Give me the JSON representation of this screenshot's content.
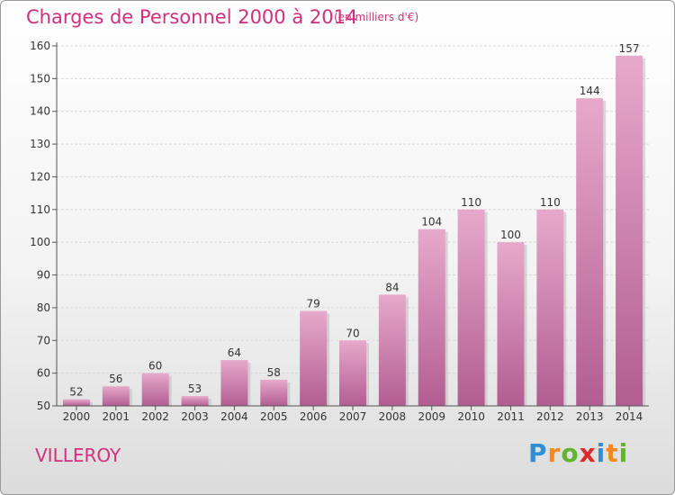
{
  "chart_data": {
    "type": "bar",
    "title": "Charges de Personnel 2000 à 2014",
    "subtitle": "(en milliers d'€)",
    "categories": [
      "2000",
      "2001",
      "2002",
      "2003",
      "2004",
      "2005",
      "2006",
      "2007",
      "2008",
      "2009",
      "2010",
      "2011",
      "2012",
      "2013",
      "2014"
    ],
    "values": [
      52,
      56,
      60,
      53,
      64,
      58,
      79,
      70,
      84,
      104,
      110,
      100,
      110,
      144,
      157
    ],
    "ylim": [
      50,
      160
    ],
    "yticks": [
      50,
      60,
      70,
      80,
      90,
      100,
      110,
      120,
      130,
      140,
      150,
      160
    ],
    "xlabel": "",
    "ylabel": "",
    "grid": true,
    "data_labels": true,
    "colors": {
      "bar_top": "#e7a9cb",
      "bar_bottom": "#b25d92",
      "text": "#d0307c"
    }
  },
  "location": "VILLEROY",
  "brand": {
    "letters": [
      "P",
      "r",
      "o",
      "x",
      "i",
      "t",
      "i"
    ],
    "colors": [
      "#2f8fd6",
      "#f08a1c",
      "#62b32f",
      "#e02a2a",
      "#2f8fd6",
      "#f08a1c",
      "#62b32f"
    ]
  }
}
